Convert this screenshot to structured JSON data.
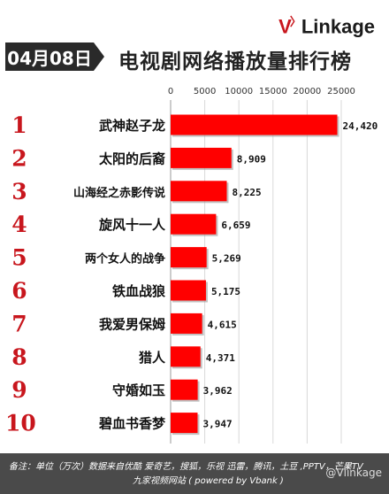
{
  "header": {
    "brand": {
      "v": "V",
      "rest": "Linkage"
    },
    "date": "04月08日",
    "title": "电视剧网络播放量排行榜"
  },
  "chart_data": {
    "type": "bar",
    "orientation": "horizontal",
    "title": "电视剧网络播放量排行榜",
    "categories": [
      "武神赵子龙",
      "太阳的后裔",
      "山海经之赤影传说",
      "旋风十一人",
      "两个女人的战争",
      "铁血战狼",
      "我爱男保姆",
      "猎人",
      "守婚如玉",
      "碧血书香梦"
    ],
    "ranks": [
      "1",
      "2",
      "3",
      "4",
      "5",
      "6",
      "7",
      "8",
      "9",
      "10"
    ],
    "values": [
      24420,
      8909,
      8225,
      6659,
      5269,
      5175,
      4615,
      4371,
      3962,
      3947
    ],
    "value_labels": [
      "24,420",
      "8,909",
      "8,225",
      "6,659",
      "5,269",
      "5,175",
      "4,615",
      "4,371",
      "3,962",
      "3,947"
    ],
    "xticks": [
      "0",
      "5000",
      "10000",
      "15000",
      "20000",
      "25000"
    ],
    "xlim": [
      0,
      25000
    ],
    "grid": true,
    "bar_color": "#ff0000",
    "rank_color": "#c8161d"
  },
  "footer": {
    "note_line1": "备注：单位（万次）数据来自优酷 爱奇艺，搜狐，乐视  迅雷，腾讯，土豆 ,PPTV，芒果TV",
    "note_line2": "九家视频网站  ( powered by Vbank )",
    "watermark": "@Vlinkage"
  }
}
